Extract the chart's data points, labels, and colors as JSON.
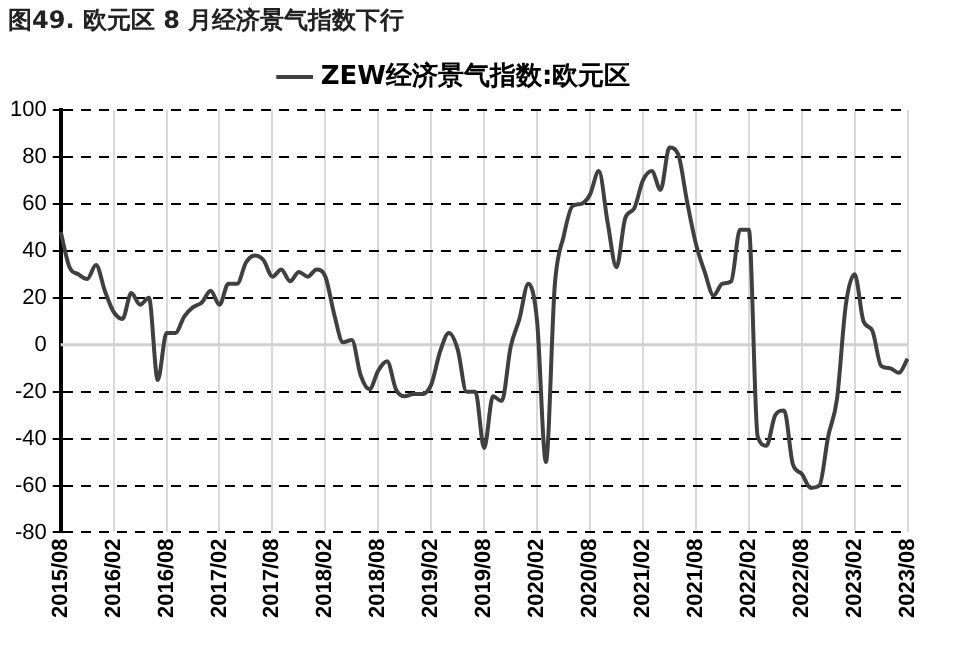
{
  "chart_data": {
    "type": "line",
    "title": "图49. 欧元区 8 月经济景气指数下行",
    "categories": [
      "2015/08",
      null,
      null,
      null,
      null,
      null,
      "2016/02",
      null,
      null,
      null,
      null,
      null,
      "2016/08",
      null,
      null,
      null,
      null,
      null,
      "2017/02",
      null,
      null,
      null,
      null,
      null,
      "2017/08",
      null,
      null,
      null,
      null,
      null,
      "2018/02",
      null,
      null,
      null,
      null,
      null,
      "2018/08",
      null,
      null,
      null,
      null,
      null,
      "2019/02",
      null,
      null,
      null,
      null,
      null,
      "2019/08",
      null,
      null,
      null,
      null,
      null,
      "2020/02",
      null,
      null,
      null,
      null,
      null,
      "2020/08",
      null,
      null,
      null,
      null,
      null,
      "2021/02",
      null,
      null,
      null,
      null,
      null,
      "2021/08",
      null,
      null,
      null,
      null,
      null,
      "2022/02",
      null,
      null,
      null,
      null,
      null,
      "2022/08",
      null,
      null,
      null,
      null,
      null,
      "2023/02",
      null,
      null,
      null,
      null,
      null,
      "2023/08"
    ],
    "series": [
      {
        "name": "ZEW经济景气指数:欧元区",
        "color": "#404040",
        "values": [
          48,
          33,
          30,
          28,
          34,
          23,
          14,
          11,
          22,
          17,
          20,
          -15,
          5,
          5,
          12,
          16,
          18,
          23,
          17,
          26,
          26,
          35,
          38,
          36,
          29,
          32,
          27,
          31,
          29,
          32,
          29,
          13,
          1,
          2,
          -13,
          -19,
          -11,
          -7,
          -19,
          -22,
          -21,
          -21,
          -17,
          -3,
          5,
          -2,
          -20,
          -20,
          -44,
          -22,
          -24,
          -1,
          11,
          26,
          10,
          -50,
          25,
          46,
          59,
          60,
          64,
          74,
          52,
          33,
          54,
          58,
          70,
          74,
          66,
          84,
          81,
          61,
          43,
          31,
          21,
          26,
          27,
          49,
          49,
          -39,
          -43,
          -30,
          -28,
          -51,
          -55,
          -61,
          -60,
          -39,
          -23,
          17,
          30,
          10,
          6,
          -9,
          -10,
          -12,
          -6
        ]
      }
    ],
    "ylim": [
      -80,
      100
    ],
    "yticks": [
      -80,
      -60,
      -40,
      -20,
      0,
      20,
      40,
      60,
      80,
      100
    ],
    "ref_lines": [
      {
        "axis": "y",
        "value": 0,
        "color": "#d0d0d0"
      }
    ],
    "grid": true,
    "legend": "top",
    "marker": "none",
    "line_style": "solid"
  }
}
